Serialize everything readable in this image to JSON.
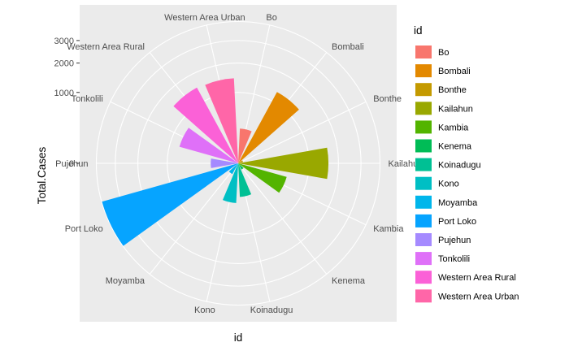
{
  "chart_data": {
    "type": "bar",
    "coord": "polar",
    "categories": [
      "Bo",
      "Bombali",
      "Bonthe",
      "Kailahun",
      "Kambia",
      "Kenema",
      "Koinadugu",
      "Kono",
      "Moyamba",
      "Port Loko",
      "Pujehun",
      "Tonkolili",
      "Western Area Rural",
      "Western Area Urban"
    ],
    "values": [
      240,
      1310,
      5,
      1620,
      505,
      10,
      225,
      315,
      30,
      3980,
      150,
      740,
      1480,
      1440
    ],
    "colors": [
      "#F8766D",
      "#E38900",
      "#C49A00",
      "#99A800",
      "#53B400",
      "#00BC56",
      "#00C094",
      "#00BFC4",
      "#00B6EB",
      "#06A4FF",
      "#A58AFF",
      "#DF70F8",
      "#FB61D7",
      "#FF66A8"
    ],
    "xlabel": "id",
    "ylabel": "Total.Cases",
    "y_ticks": [
      0,
      1000,
      2000,
      3000
    ],
    "y_tick_labels": [
      "0",
      "1000",
      "2000",
      "3000"
    ],
    "y_max": 4000,
    "legend_title": "id",
    "legend_position": "right",
    "grid": true
  }
}
